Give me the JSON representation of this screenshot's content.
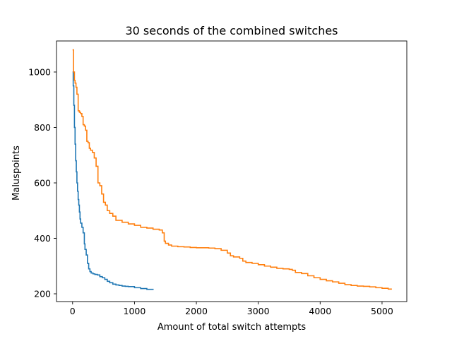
{
  "chart_data": {
    "type": "line",
    "title": "30 seconds of the combined switches",
    "xlabel": "Amount of total switch attempts",
    "ylabel": "Maluspoints",
    "xlim": [
      -260,
      5400
    ],
    "ylim": [
      172,
      1112
    ],
    "xticks": [
      0,
      1000,
      2000,
      3000,
      4000,
      5000
    ],
    "yticks": [
      200,
      400,
      600,
      800,
      1000
    ],
    "grid": false,
    "legend": "none",
    "series": [
      {
        "color": "#1f77b4",
        "x": [
          0,
          10,
          20,
          30,
          40,
          50,
          60,
          70,
          80,
          90,
          100,
          110,
          120,
          130,
          150,
          170,
          190,
          200,
          220,
          240,
          260,
          280,
          300,
          330,
          360,
          400,
          440,
          480,
          520,
          560,
          600,
          650,
          700,
          750,
          800,
          850,
          900,
          1000,
          1100,
          1200,
          1300
        ],
        "y": [
          1000,
          950,
          880,
          800,
          740,
          680,
          640,
          600,
          570,
          540,
          520,
          495,
          470,
          455,
          440,
          420,
          380,
          360,
          340,
          310,
          290,
          280,
          275,
          272,
          270,
          268,
          262,
          258,
          252,
          245,
          240,
          235,
          232,
          230,
          228,
          227,
          226,
          222,
          219,
          216,
          214
        ]
      },
      {
        "color": "#ff7f0e",
        "x": [
          0,
          15,
          30,
          40,
          55,
          70,
          90,
          110,
          130,
          150,
          170,
          190,
          210,
          230,
          250,
          270,
          290,
          320,
          350,
          380,
          410,
          440,
          470,
          500,
          530,
          560,
          600,
          650,
          700,
          800,
          900,
          1000,
          1100,
          1200,
          1300,
          1400,
          1450,
          1480,
          1500,
          1550,
          1600,
          1700,
          1800,
          1900,
          2000,
          2100,
          2200,
          2300,
          2400,
          2500,
          2550,
          2600,
          2700,
          2750,
          2800,
          2900,
          3000,
          3100,
          3200,
          3300,
          3400,
          3500,
          3550,
          3600,
          3700,
          3800,
          3900,
          4000,
          4100,
          4200,
          4300,
          4400,
          4500,
          4600,
          4700,
          4800,
          4900,
          5000,
          5100,
          5150
        ],
        "y": [
          1080,
          1000,
          970,
          960,
          945,
          920,
          860,
          855,
          850,
          840,
          810,
          805,
          790,
          750,
          745,
          725,
          718,
          710,
          690,
          660,
          600,
          590,
          560,
          530,
          520,
          500,
          490,
          480,
          465,
          458,
          452,
          447,
          440,
          437,
          433,
          430,
          420,
          390,
          382,
          376,
          372,
          370,
          369,
          367,
          366,
          366,
          365,
          363,
          357,
          347,
          337,
          333,
          328,
          318,
          313,
          310,
          305,
          300,
          296,
          292,
          290,
          288,
          285,
          277,
          273,
          265,
          258,
          252,
          247,
          243,
          238,
          233,
          230,
          228,
          227,
          225,
          222,
          220,
          217,
          215
        ]
      }
    ]
  }
}
